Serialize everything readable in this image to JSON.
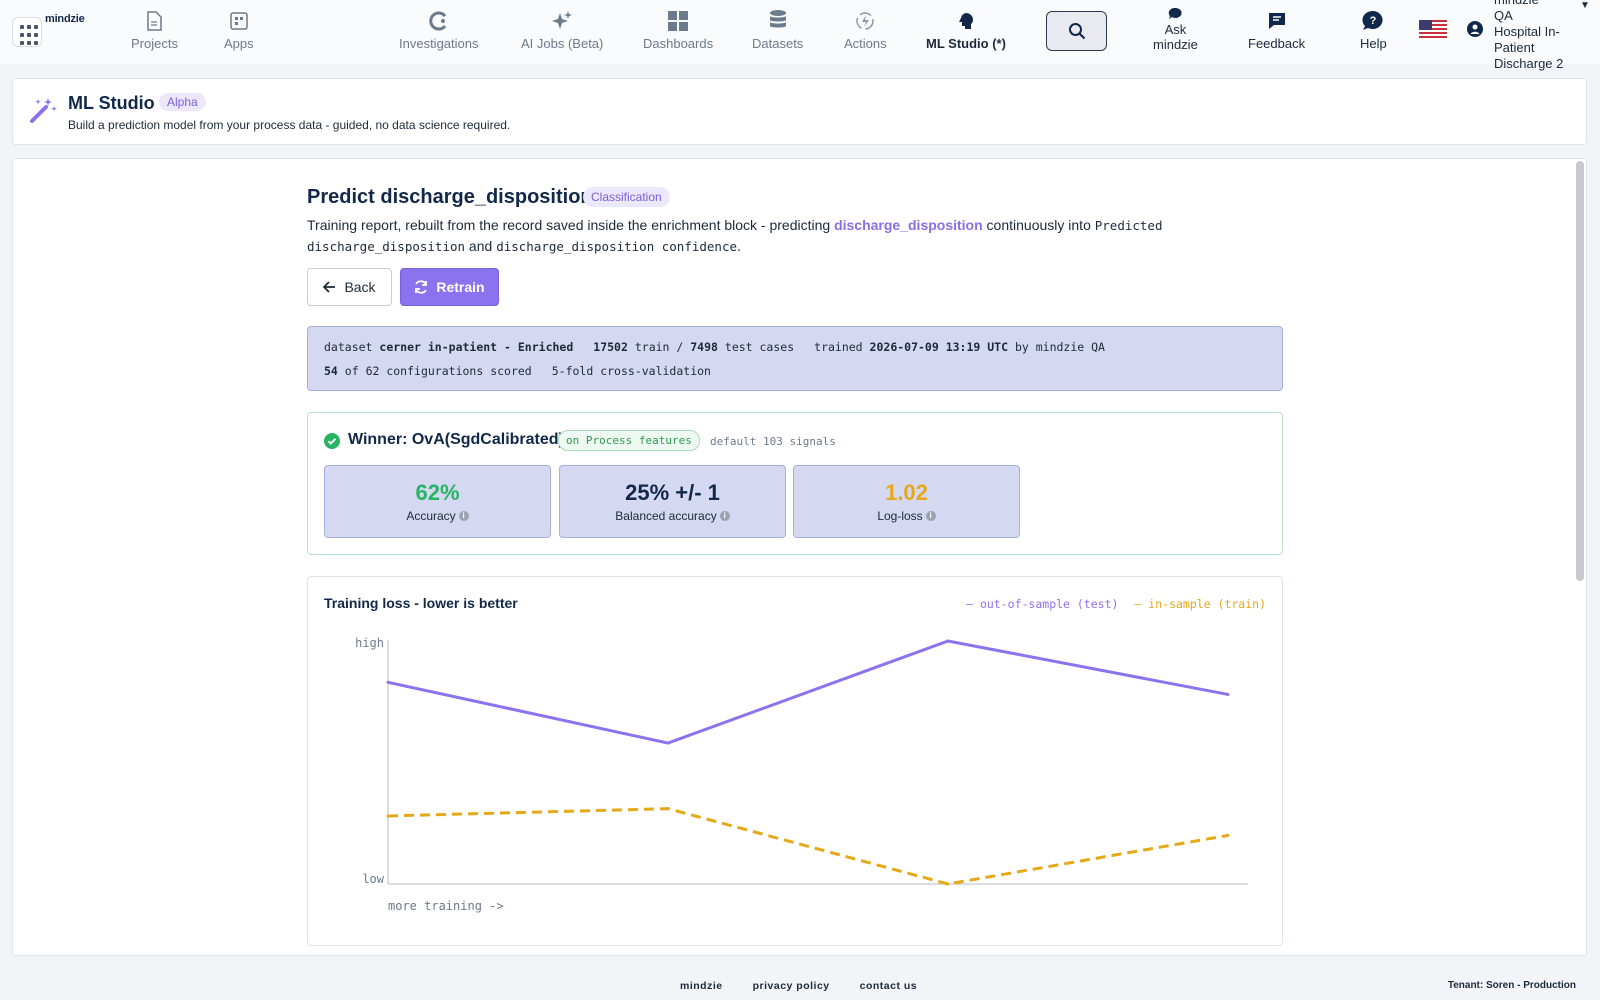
{
  "nav": {
    "logo": "mindzie",
    "items": [
      {
        "label": "Projects",
        "icon": "document-icon"
      },
      {
        "label": "Apps",
        "icon": "apps-icon"
      },
      {
        "label": "Investigations",
        "icon": "investigations-icon"
      },
      {
        "label": "AI Jobs (Beta)",
        "icon": "sparkle-icon"
      },
      {
        "label": "Dashboards",
        "icon": "dashboard-icon"
      },
      {
        "label": "Datasets",
        "icon": "database-icon"
      },
      {
        "label": "Actions",
        "icon": "actions-icon"
      },
      {
        "label": "ML Studio (*)",
        "icon": "brain-icon"
      }
    ],
    "ask_line1": "Ask",
    "ask_line2": "mindzie",
    "feedback": "Feedback",
    "help": "Help",
    "user_lines": [
      "mindzie",
      "QA",
      "Hospital In-",
      "Patient",
      "Discharge 2"
    ]
  },
  "header": {
    "title": "ML Studio",
    "badge": "Alpha",
    "subtitle": "Build a prediction model from your process data - guided, no data science required."
  },
  "report": {
    "title": "Predict discharge_disposition",
    "badge": "Classification",
    "desc_pre": "Training report, rebuilt from the record saved inside the enrichment block - predicting ",
    "desc_target": "discharge_disposition",
    "desc_mid": " continuously into ",
    "desc_col1": "Predicted discharge_disposition",
    "desc_and": " and ",
    "desc_col2": "discharge_disposition confidence",
    "desc_end": ".",
    "back_label": "Back",
    "retrain_label": "Retrain"
  },
  "meta": {
    "dataset_label": "dataset",
    "dataset_name": "cerner in-patient - Enriched",
    "train_count": "17502",
    "train_label": "train /",
    "test_count": "7498",
    "test_label": "test cases",
    "trained_label": "trained",
    "trained_at": "2026-07-09 13:19 UTC",
    "by_label": "by mindzie QA",
    "scored_count": "54",
    "scored_label": "of 62 configurations scored",
    "cv_label": "5-fold cross-validation"
  },
  "winner": {
    "title": "Winner: OvA(SgdCalibrated)",
    "badge": "on Process features",
    "extra": "default 103 signals",
    "metrics": [
      {
        "value": "62%",
        "label": "Accuracy",
        "color": "#28b463"
      },
      {
        "value": "25% +/- 1",
        "label": "Balanced accuracy",
        "color": "#12284a"
      },
      {
        "value": "1.02",
        "label": "Log-loss",
        "color": "#e6a817"
      }
    ]
  },
  "chart_data": {
    "type": "line",
    "title": "Training loss - lower is better",
    "ylabel_high": "high",
    "ylabel_low": "low",
    "xlabel": "more training ->",
    "x": [
      1,
      2,
      3,
      4
    ],
    "ylim": [
      0,
      1
    ],
    "grid": false,
    "legend_position": "top-right",
    "series": [
      {
        "name": "out-of-sample (test)",
        "values": [
          0.83,
          0.58,
          1.0,
          0.78
        ],
        "color": "#8b72ee",
        "style": "solid"
      },
      {
        "name": "in-sample (train)",
        "values": [
          0.28,
          0.31,
          0.0,
          0.2
        ],
        "color": "#e6a817",
        "style": "dashed"
      }
    ]
  },
  "footer": {
    "links": [
      "mindzie",
      "privacy policy",
      "contact us"
    ],
    "tenant": "Tenant: Soren - Production"
  }
}
